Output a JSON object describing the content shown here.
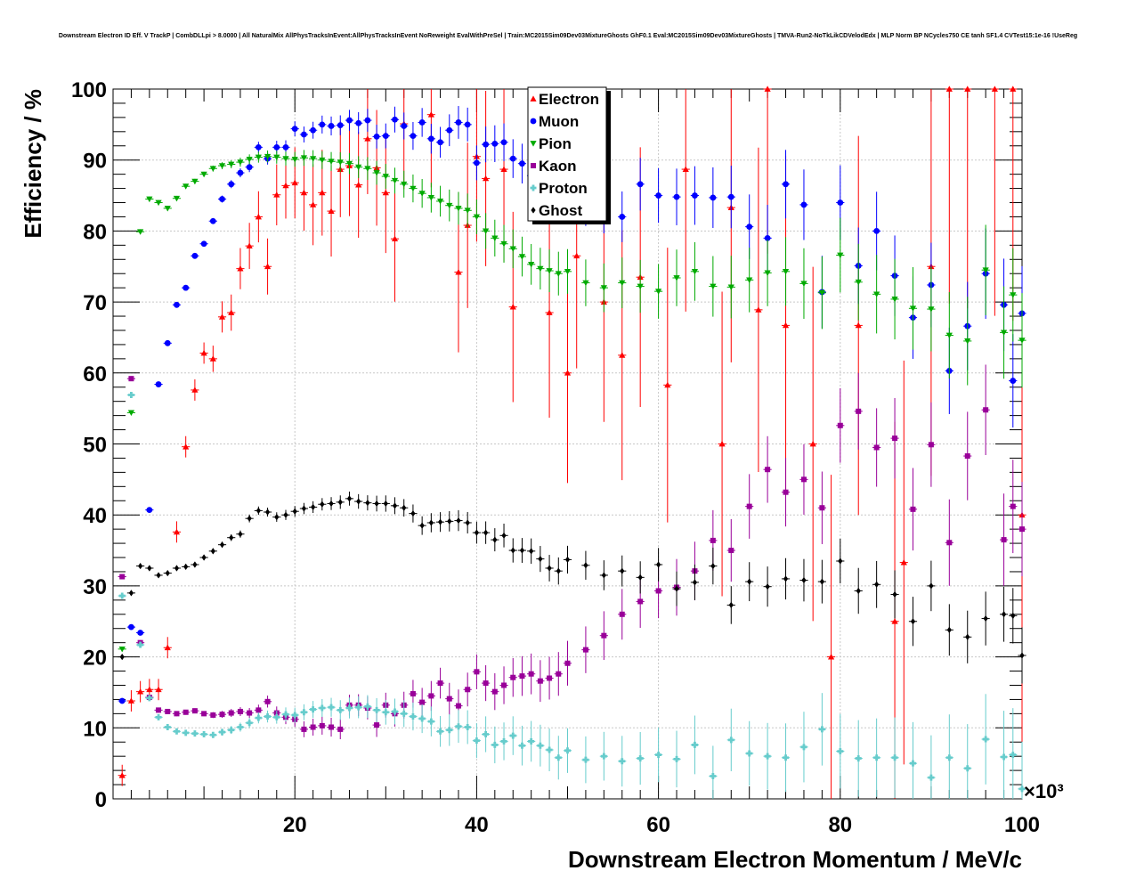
{
  "chart_data": {
    "type": "scatter",
    "title": "Downstream Electron ID Eff. V TrackP | CombDLLpi > 8.0000 | All NaturalMix AllPhysTracksInEvent:AllPhysTracksInEvent NoReweight EvalWithPreSel | Train:MC2015Sim09Dev03MixtureGhosts GhF0.1 Eval:MC2015Sim09Dev03MixtureGhosts | TMVA-Run2-NoTkLikCDVelodEdx | MLP Norm BP NCycles750 CE tanh SF1.4 CVTest15:1e-16 !UseReg",
    "xlabel": "Downstream Electron Momentum / MeV/c",
    "ylabel": "Efficiency / %",
    "x_multiplier_label": "×10³",
    "xlim": [
      0,
      100
    ],
    "ylim": [
      0,
      100
    ],
    "x_ticks": [
      20,
      40,
      60,
      80,
      100
    ],
    "y_ticks": [
      0,
      10,
      20,
      30,
      40,
      50,
      60,
      70,
      80,
      90,
      100
    ],
    "grid": true,
    "legend_position": "top-center",
    "series": [
      {
        "name": "Electron",
        "color": "#ff0000",
        "marker": "triangle-up",
        "x": [
          1,
          2,
          3,
          4,
          5,
          6,
          7,
          8,
          9,
          10,
          11,
          12,
          13,
          14,
          15,
          16,
          17,
          18,
          19,
          20,
          21,
          22,
          23,
          24,
          25,
          26,
          27,
          28,
          29,
          30,
          31,
          32,
          35,
          38,
          39,
          40,
          41,
          43,
          44,
          48,
          50,
          51,
          54,
          56,
          58,
          61,
          63,
          67,
          68,
          71,
          72,
          74,
          77,
          79,
          82,
          86,
          87,
          90,
          92,
          94,
          97,
          99,
          100
        ],
        "y": [
          3.3,
          13.8,
          15.1,
          15.4,
          15.4,
          21.3,
          37.6,
          49.6,
          57.6,
          62.8,
          62.0,
          67.9,
          68.5,
          74.7,
          77.9,
          82.0,
          75.0,
          85.1,
          86.4,
          86.8,
          85.4,
          83.7,
          85.4,
          82.8,
          88.7,
          89.2,
          86.5,
          93.0,
          88.9,
          85.4,
          78.9,
          95.1,
          96.4,
          74.2,
          80.8,
          90.5,
          87.4,
          88.7,
          69.3,
          68.5,
          60.0,
          76.5,
          70.0,
          62.5,
          73.5,
          58.3,
          88.7,
          50.0,
          83.3,
          68.9,
          100.0,
          66.7,
          50.0,
          20.0,
          66.7,
          25.0,
          33.3,
          75.0,
          100.0,
          100.0,
          100.0,
          100.0,
          40.0
        ]
      },
      {
        "name": "Muon",
        "color": "#0000ff",
        "marker": "circle",
        "x": [
          1,
          2,
          3,
          4,
          5,
          6,
          7,
          8,
          9,
          10,
          11,
          12,
          13,
          14,
          15,
          16,
          17,
          18,
          19,
          20,
          21,
          22,
          23,
          24,
          25,
          26,
          27,
          28,
          29,
          30,
          31,
          32,
          33,
          34,
          35,
          36,
          37,
          38,
          39,
          40,
          41,
          42,
          43,
          44,
          45,
          46,
          47,
          48,
          49,
          50,
          52,
          54,
          56,
          58,
          60,
          62,
          64,
          66,
          68,
          70,
          72,
          74,
          76,
          78,
          80,
          82,
          84,
          86,
          88,
          90,
          92,
          94,
          96,
          98,
          99,
          100
        ],
        "y": [
          13.8,
          24.2,
          23.4,
          40.7,
          58.4,
          64.2,
          69.6,
          72.0,
          76.5,
          78.2,
          81.4,
          84.5,
          86.6,
          88.2,
          89.0,
          91.8,
          90.2,
          91.8,
          91.8,
          94.4,
          93.6,
          94.2,
          95.0,
          94.8,
          94.9,
          95.6,
          95.2,
          95.6,
          93.3,
          93.4,
          95.7,
          94.8,
          93.4,
          95.3,
          93.0,
          92.5,
          94.2,
          95.3,
          95.0,
          89.6,
          92.2,
          92.3,
          92.5,
          90.2,
          89.5,
          87.8,
          88.5,
          86.2,
          84.2,
          85.0,
          84.0,
          83.1,
          82.0,
          86.6,
          85.0,
          84.8,
          85.0,
          84.7,
          84.8,
          80.6,
          79.0,
          86.6,
          83.7,
          71.4,
          84.0,
          75.1,
          80.0,
          73.7,
          67.8,
          72.4,
          60.3,
          66.6,
          74.0,
          69.6,
          58.9,
          68.4
        ]
      },
      {
        "name": "Pion",
        "color": "#00aa00",
        "marker": "triangle-down",
        "x": [
          1,
          2,
          3,
          4,
          5,
          6,
          7,
          8,
          9,
          10,
          11,
          12,
          13,
          14,
          15,
          16,
          17,
          18,
          19,
          20,
          21,
          22,
          23,
          24,
          25,
          26,
          27,
          28,
          29,
          30,
          31,
          32,
          33,
          34,
          35,
          36,
          37,
          38,
          39,
          40,
          41,
          42,
          43,
          44,
          45,
          46,
          47,
          48,
          49,
          50,
          52,
          54,
          56,
          58,
          60,
          62,
          64,
          66,
          68,
          70,
          72,
          74,
          76,
          78,
          80,
          82,
          84,
          86,
          88,
          90,
          92,
          94,
          96,
          98,
          99,
          100
        ],
        "y": [
          21.1,
          54.4,
          79.9,
          84.5,
          84.0,
          83.2,
          84.6,
          86.3,
          87.0,
          88.0,
          88.8,
          89.2,
          89.4,
          89.7,
          90.1,
          90.4,
          90.5,
          90.4,
          90.2,
          90.1,
          90.3,
          90.2,
          90.0,
          89.8,
          89.7,
          89.5,
          89.0,
          88.8,
          88.2,
          87.7,
          87.1,
          86.6,
          86.0,
          85.3,
          84.7,
          84.2,
          83.6,
          83.2,
          82.9,
          82.0,
          80.0,
          79.0,
          78.2,
          77.5,
          76.4,
          75.3,
          74.7,
          74.4,
          74.0,
          74.3,
          72.7,
          72.0,
          72.7,
          72.2,
          71.5,
          73.4,
          74.3,
          72.2,
          72.1,
          73.1,
          74.1,
          74.3,
          72.6,
          71.3,
          76.6,
          72.8,
          71.1,
          70.4,
          69.1,
          69.0,
          65.3,
          64.5,
          74.5,
          65.7,
          71.0,
          64.6
        ]
      },
      {
        "name": "Kaon",
        "color": "#990099",
        "marker": "square",
        "x": [
          1,
          2,
          3,
          4,
          5,
          6,
          7,
          8,
          9,
          10,
          11,
          12,
          13,
          14,
          15,
          16,
          17,
          18,
          19,
          20,
          21,
          22,
          23,
          24,
          25,
          26,
          27,
          28,
          29,
          30,
          31,
          32,
          33,
          34,
          35,
          36,
          37,
          38,
          39,
          40,
          41,
          42,
          43,
          44,
          45,
          46,
          47,
          48,
          49,
          50,
          52,
          54,
          56,
          58,
          60,
          62,
          64,
          66,
          68,
          70,
          72,
          74,
          76,
          78,
          80,
          82,
          84,
          86,
          88,
          90,
          92,
          94,
          96,
          98,
          99,
          100
        ],
        "y": [
          31.3,
          59.2,
          22.0,
          14.3,
          12.5,
          12.3,
          12.0,
          12.2,
          12.4,
          12.0,
          11.8,
          11.9,
          12.1,
          12.3,
          12.1,
          12.5,
          13.7,
          12.1,
          11.5,
          11.2,
          9.8,
          10.1,
          10.3,
          10.1,
          9.8,
          13.2,
          13.2,
          12.8,
          10.4,
          13.2,
          12.0,
          13.2,
          14.8,
          13.6,
          14.5,
          16.3,
          14.1,
          13.1,
          15.4,
          17.9,
          16.3,
          15.1,
          16.0,
          17.1,
          17.3,
          17.6,
          16.6,
          17.0,
          17.6,
          19.1,
          21.0,
          23.0,
          26.0,
          27.8,
          29.3,
          29.8,
          32.1,
          36.4,
          35.0,
          41.2,
          46.4,
          43.2,
          45.0,
          41.0,
          52.6,
          54.6,
          49.5,
          50.8,
          40.8,
          49.9,
          36.1,
          48.3,
          54.8,
          36.5,
          41.2,
          38.0
        ]
      },
      {
        "name": "Proton",
        "color": "#66cccc",
        "marker": "cross",
        "x": [
          1,
          2,
          3,
          4,
          5,
          6,
          7,
          8,
          9,
          10,
          11,
          12,
          13,
          14,
          15,
          16,
          17,
          18,
          19,
          20,
          21,
          22,
          23,
          24,
          25,
          26,
          27,
          28,
          29,
          30,
          31,
          32,
          33,
          34,
          35,
          36,
          37,
          38,
          39,
          40,
          41,
          42,
          43,
          44,
          45,
          46,
          47,
          48,
          49,
          50,
          52,
          54,
          56,
          58,
          60,
          62,
          64,
          66,
          68,
          70,
          72,
          74,
          76,
          78,
          80,
          82,
          84,
          86,
          88,
          90,
          92,
          94,
          96,
          98,
          99,
          100
        ],
        "y": [
          28.6,
          56.9,
          21.7,
          14.2,
          11.5,
          10.1,
          9.5,
          9.3,
          9.2,
          9.1,
          9.0,
          9.4,
          9.7,
          10.1,
          10.7,
          11.4,
          11.6,
          11.5,
          11.9,
          11.8,
          12.2,
          12.6,
          12.8,
          12.9,
          12.5,
          12.8,
          12.9,
          13.0,
          12.5,
          12.2,
          12.3,
          12.0,
          11.6,
          11.3,
          10.9,
          9.5,
          9.7,
          10.2,
          10.1,
          8.2,
          9.1,
          7.6,
          8.1,
          8.9,
          7.5,
          8.1,
          7.5,
          6.9,
          5.8,
          6.8,
          5.5,
          6.0,
          5.3,
          5.7,
          6.2,
          5.6,
          7.6,
          3.2,
          8.3,
          6.4,
          6.0,
          5.8,
          7.3,
          9.8,
          6.7,
          5.7,
          5.8,
          5.8,
          5.0,
          3.0,
          5.8,
          4.3,
          8.4,
          5.9,
          6.2,
          1.4
        ]
      },
      {
        "name": "Ghost",
        "color": "#000000",
        "marker": "diamond",
        "x": [
          1,
          2,
          3,
          4,
          5,
          6,
          7,
          8,
          9,
          10,
          11,
          12,
          13,
          14,
          15,
          16,
          17,
          18,
          19,
          20,
          21,
          22,
          23,
          24,
          25,
          26,
          27,
          28,
          29,
          30,
          31,
          32,
          33,
          34,
          35,
          36,
          37,
          38,
          39,
          40,
          41,
          42,
          43,
          44,
          45,
          46,
          47,
          48,
          49,
          50,
          52,
          54,
          56,
          58,
          60,
          62,
          64,
          66,
          68,
          70,
          72,
          74,
          76,
          78,
          80,
          82,
          84,
          86,
          88,
          90,
          92,
          94,
          96,
          98,
          99,
          100
        ],
        "y": [
          20.0,
          29.0,
          32.8,
          32.5,
          31.5,
          31.8,
          32.5,
          32.7,
          33.0,
          34.0,
          34.9,
          35.8,
          36.8,
          37.3,
          39.5,
          40.6,
          40.4,
          39.7,
          40.0,
          40.5,
          40.9,
          41.1,
          41.5,
          41.6,
          41.8,
          42.3,
          41.9,
          41.7,
          41.6,
          41.6,
          41.3,
          41.0,
          40.2,
          38.5,
          38.9,
          39.0,
          39.1,
          39.2,
          38.9,
          37.5,
          37.5,
          36.5,
          37.1,
          35.0,
          35.0,
          34.9,
          33.8,
          32.5,
          32.1,
          33.7,
          32.9,
          31.5,
          32.1,
          31.2,
          33.0,
          29.6,
          30.5,
          32.8,
          27.3,
          30.6,
          29.9,
          31.0,
          30.8,
          30.6,
          33.5,
          29.3,
          30.2,
          28.8,
          25.0,
          30.0,
          23.8,
          22.8,
          25.4,
          26.0,
          25.8,
          20.2
        ]
      }
    ]
  }
}
